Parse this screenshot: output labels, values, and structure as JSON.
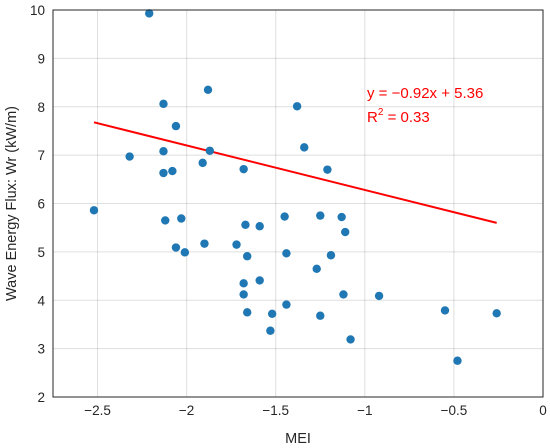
{
  "chart_data": {
    "type": "scatter",
    "title": "",
    "xlabel": "MEI",
    "ylabel": "Wave Energy Flux: Wr (kW/m)",
    "xlim": [
      -2.75,
      0
    ],
    "ylim": [
      2,
      10
    ],
    "xticks": [
      -2.5,
      -2,
      -1.5,
      -1,
      -0.5,
      0
    ],
    "xtick_labels": [
      "−2.5",
      "−2",
      "−1.5",
      "−1",
      "−0.5",
      "0"
    ],
    "yticks": [
      2,
      3,
      4,
      5,
      6,
      7,
      8,
      9,
      10
    ],
    "ytick_labels": [
      "2",
      "3",
      "4",
      "5",
      "6",
      "7",
      "8",
      "9",
      "10"
    ],
    "grid": true,
    "colors": {
      "points": "#1f77b4",
      "fit": "#ff0000",
      "grid": "#262626",
      "axes": "#262626"
    },
    "series": [
      {
        "points": [
          [
            -2.52,
            5.86
          ],
          [
            -2.32,
            6.97
          ],
          [
            -2.21,
            9.93
          ],
          [
            -2.13,
            8.06
          ],
          [
            -2.13,
            7.08
          ],
          [
            -2.13,
            6.63
          ],
          [
            -2.12,
            5.65
          ],
          [
            -2.08,
            6.67
          ],
          [
            -2.06,
            7.6
          ],
          [
            -2.06,
            5.09
          ],
          [
            -2.03,
            5.69
          ],
          [
            -2.01,
            4.99
          ],
          [
            -1.91,
            6.84
          ],
          [
            -1.9,
            5.17
          ],
          [
            -1.88,
            8.35
          ],
          [
            -1.87,
            7.09
          ],
          [
            -1.72,
            5.15
          ],
          [
            -1.68,
            6.71
          ],
          [
            -1.68,
            4.35
          ],
          [
            -1.68,
            4.12
          ],
          [
            -1.67,
            5.56
          ],
          [
            -1.66,
            4.91
          ],
          [
            -1.66,
            3.75
          ],
          [
            -1.59,
            5.53
          ],
          [
            -1.59,
            4.41
          ],
          [
            -1.53,
            3.37
          ],
          [
            -1.52,
            3.72
          ],
          [
            -1.45,
            5.73
          ],
          [
            -1.44,
            4.97
          ],
          [
            -1.44,
            3.91
          ],
          [
            -1.38,
            8.01
          ],
          [
            -1.34,
            7.16
          ],
          [
            -1.27,
            4.65
          ],
          [
            -1.25,
            5.75
          ],
          [
            -1.25,
            3.68
          ],
          [
            -1.21,
            6.7
          ],
          [
            -1.19,
            4.93
          ],
          [
            -1.13,
            5.72
          ],
          [
            -1.12,
            4.12
          ],
          [
            -1.11,
            5.41
          ],
          [
            -1.08,
            3.19
          ],
          [
            -0.92,
            4.09
          ],
          [
            -0.55,
            3.79
          ],
          [
            -0.48,
            2.75
          ],
          [
            -0.26,
            3.73
          ]
        ]
      }
    ],
    "fit_line": {
      "slope": -0.92,
      "intercept": 5.36,
      "x_range": [
        -2.52,
        -0.26
      ],
      "equation_text": "y = −0.92x + 5.36",
      "r2_base": "R",
      "r2_sup": "2",
      "r2_rest": " = 0.33"
    }
  }
}
